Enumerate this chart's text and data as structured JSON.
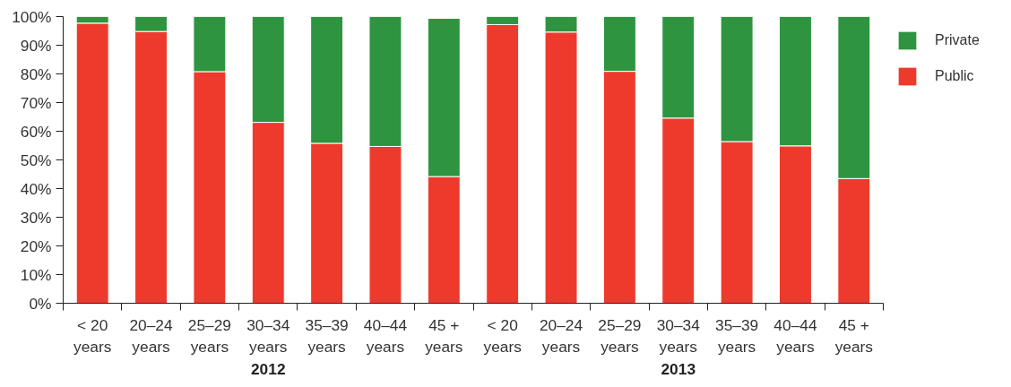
{
  "chart_data": {
    "type": "bar",
    "stacked": true,
    "categories": [
      "< 20\nyears",
      "20–24\nyears",
      "25–29\nyears",
      "30–34\nyears",
      "35–39\nyears",
      "40–44\nyears",
      "45 +\nyears",
      "< 20\nyears",
      "20–24\nyears",
      "25–29\nyears",
      "30–34\nyears",
      "35–39\nyears",
      "40–44\nyears",
      "45 +\nyears"
    ],
    "series": [
      {
        "name": "Public",
        "color": "#ee3a2c",
        "values": [
          97.7,
          94.8,
          80.8,
          63.1,
          55.8,
          54.7,
          44.2,
          97.2,
          94.6,
          80.9,
          64.6,
          56.4,
          54.9,
          43.5
        ]
      },
      {
        "name": "Private",
        "color": "#2e9440",
        "values": [
          2.3,
          5.2,
          19.2,
          36.9,
          44.2,
          45.3,
          55.2,
          2.8,
          5.4,
          19.1,
          35.4,
          43.6,
          45.1,
          56.5
        ]
      }
    ],
    "ylim": [
      0,
      100
    ],
    "yticks": [
      {
        "value": 0,
        "label": "0%"
      },
      {
        "value": 10,
        "label": "10%"
      },
      {
        "value": 20,
        "label": "20%"
      },
      {
        "value": 30,
        "label": "30%"
      },
      {
        "value": 40,
        "label": "40%"
      },
      {
        "value": 50,
        "label": "50%"
      },
      {
        "value": 60,
        "label": "60%"
      },
      {
        "value": 70,
        "label": "70%"
      },
      {
        "value": 80,
        "label": "80%"
      },
      {
        "value": 90,
        "label": "90%"
      },
      {
        "value": 100,
        "label": "100%"
      }
    ],
    "legend": "top right",
    "annotations": [
      "2012",
      "2013"
    ]
  }
}
